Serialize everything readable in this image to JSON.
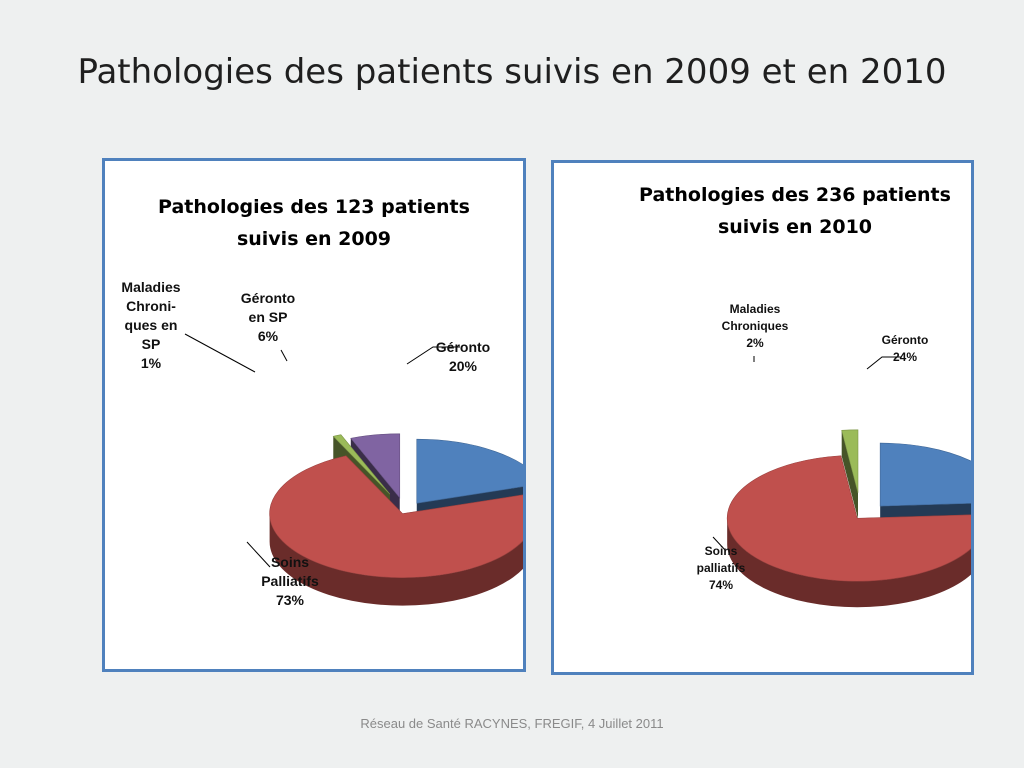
{
  "slide": {
    "title": "Pathologies des patients suivis en  2009 et en 2010",
    "footer": "Réseau de Santé RACYNES, FREGIF, 4 Juillet 2011"
  },
  "chart_data": [
    {
      "type": "pie",
      "title_lines": [
        "Pathologies des 123 patients",
        "suivis en 2009"
      ],
      "slices": [
        {
          "label_lines": [
            "Géronto",
            "20%"
          ],
          "value": 20,
          "color": "#4f81bd"
        },
        {
          "label_lines": [
            "Soins",
            "Palliatifs",
            "73%"
          ],
          "value": 73,
          "color": "#c0504d"
        },
        {
          "label_lines": [
            "Maladies",
            "Chroni-",
            "ques en",
            "SP",
            "1%"
          ],
          "value": 1,
          "color": "#9bbb59"
        },
        {
          "label_lines": [
            "Géronto",
            "en SP",
            "6%"
          ],
          "value": 6,
          "color": "#8064a2"
        }
      ]
    },
    {
      "type": "pie",
      "title_lines": [
        "Pathologies des 236 patients",
        "suivis en 2010"
      ],
      "slices": [
        {
          "label_lines": [
            "Géronto",
            "24%"
          ],
          "value": 24,
          "color": "#4f81bd"
        },
        {
          "label_lines": [
            "Soins",
            "palliatifs",
            "74%"
          ],
          "value": 74,
          "color": "#c0504d"
        },
        {
          "label_lines": [
            "Maladies",
            "Chroniques",
            "2%"
          ],
          "value": 2,
          "color": "#9bbb59"
        }
      ]
    }
  ]
}
